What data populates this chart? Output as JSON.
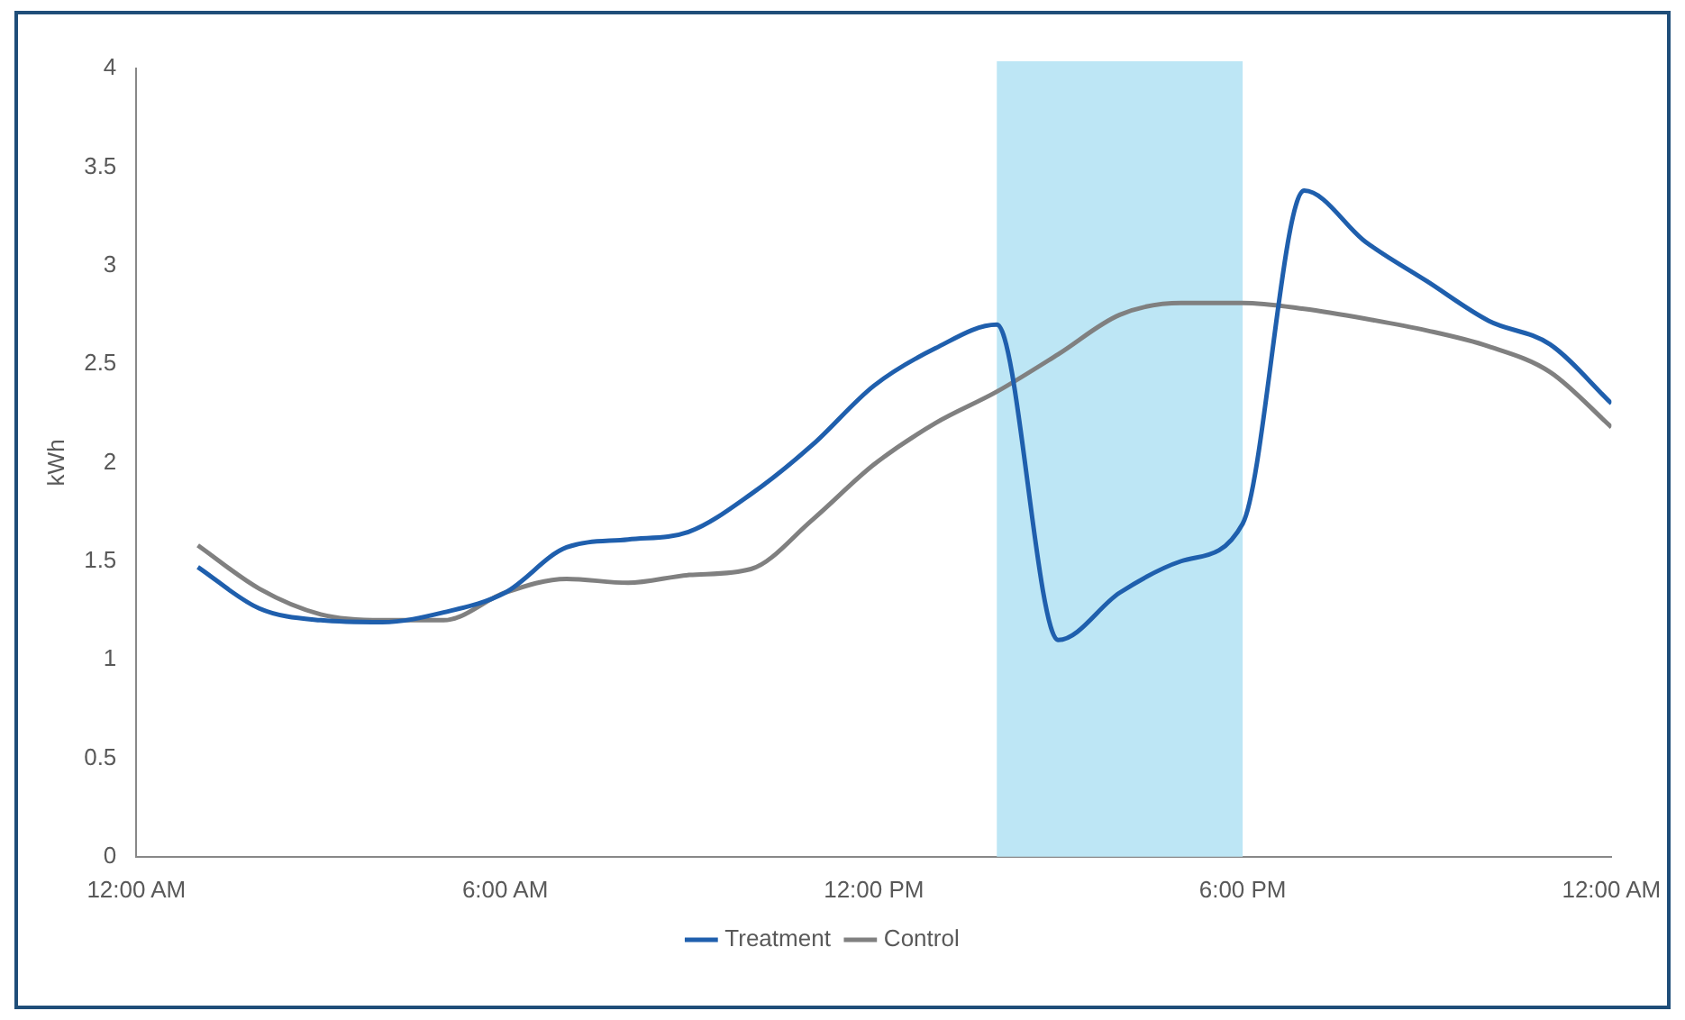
{
  "chart_data": {
    "type": "line",
    "ylabel": "kWh",
    "x": [
      1,
      2,
      3,
      4,
      5,
      6,
      7,
      8,
      9,
      10,
      11,
      12,
      13,
      14,
      15,
      16,
      17,
      18,
      19,
      20,
      21,
      22,
      23,
      24
    ],
    "series": [
      {
        "name": "Treatment",
        "color": "#1f5fad",
        "values": [
          1.47,
          1.26,
          1.2,
          1.19,
          1.24,
          1.34,
          1.57,
          1.61,
          1.65,
          1.84,
          2.09,
          2.39,
          2.58,
          2.7,
          1.1,
          1.34,
          1.5,
          1.69,
          3.38,
          3.12,
          2.92,
          2.72,
          2.6,
          2.3
        ]
      },
      {
        "name": "Control",
        "color": "#808080",
        "values": [
          1.58,
          1.36,
          1.23,
          1.2,
          1.2,
          1.34,
          1.41,
          1.39,
          1.43,
          1.46,
          1.71,
          1.99,
          2.2,
          2.36,
          2.55,
          2.75,
          2.81,
          2.81,
          2.78,
          2.73,
          2.67,
          2.59,
          2.46,
          2.18
        ]
      }
    ],
    "xlim": [
      0,
      24
    ],
    "xticks": [
      {
        "value": 0,
        "label": "12:00 AM"
      },
      {
        "value": 6,
        "label": "6:00 AM"
      },
      {
        "value": 12,
        "label": "12:00 PM"
      },
      {
        "value": 18,
        "label": "6:00 PM"
      },
      {
        "value": 24,
        "label": "12:00 AM"
      }
    ],
    "ylim": [
      0,
      4
    ],
    "yticks": [
      0,
      0.5,
      1,
      1.5,
      2,
      2.5,
      3,
      3.5,
      4
    ],
    "bands": [
      {
        "axis": "x",
        "from": 14,
        "to": 18,
        "color": "#bde6f5"
      }
    ],
    "legend": "bottom",
    "grid": false,
    "marker": "none"
  }
}
